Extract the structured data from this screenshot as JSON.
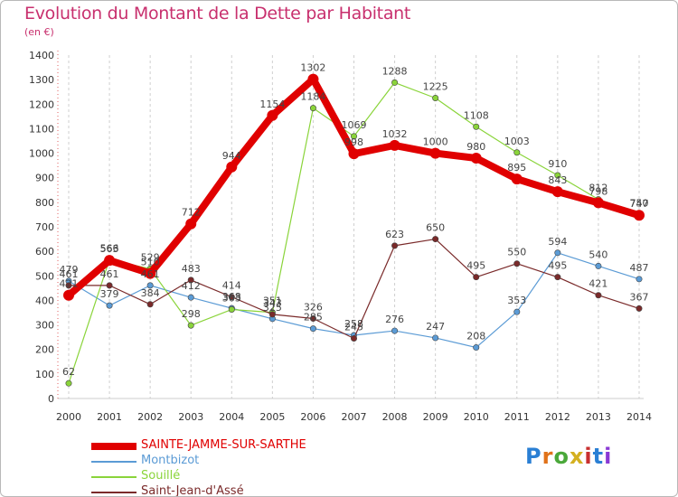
{
  "title": "Evolution du Montant de la Dette par Habitant",
  "subtitle": "(en €)",
  "logo_text": "Proxiti",
  "chart_data": {
    "type": "line",
    "title": "Evolution du Montant de la Dette par Habitant",
    "subtitle": "(en €)",
    "xlabel": "",
    "ylabel": "",
    "x": [
      2000,
      2001,
      2002,
      2003,
      2004,
      2005,
      2006,
      2007,
      2008,
      2009,
      2010,
      2011,
      2012,
      2013,
      2014
    ],
    "ylim": [
      0,
      1400
    ],
    "yticks": [
      0,
      100,
      200,
      300,
      400,
      500,
      600,
      700,
      800,
      900,
      1000,
      1100,
      1200,
      1300,
      1400
    ],
    "grid": "vertical dashed",
    "legend_position": "bottom-left",
    "series": [
      {
        "name": "SAINTE-JAMME-SUR-SARTHE",
        "color": "#e00000",
        "values": [
          421,
          563,
          510,
          712,
          944,
          1154,
          1302,
          998,
          1032,
          1000,
          980,
          895,
          843,
          798,
          747
        ]
      },
      {
        "name": "Montbizot",
        "color": "#5b9bd5",
        "values": [
          479,
          379,
          461,
          412,
          368,
          325,
          285,
          258,
          276,
          247,
          208,
          353,
          594,
          540,
          487
        ]
      },
      {
        "name": "Souillé",
        "color": "#8ad43a",
        "values": [
          62,
          566,
          529,
          298,
          363,
          351,
          1184,
          1069,
          1288,
          1225,
          1108,
          1003,
          910,
          812,
          750
        ]
      },
      {
        "name": "Saint-Jean-d'Assé",
        "color": "#7a2a2a",
        "values": [
          461,
          461,
          384,
          483,
          414,
          343,
          326,
          245,
          623,
          650,
          495,
          550,
          495,
          421,
          367
        ]
      }
    ]
  }
}
